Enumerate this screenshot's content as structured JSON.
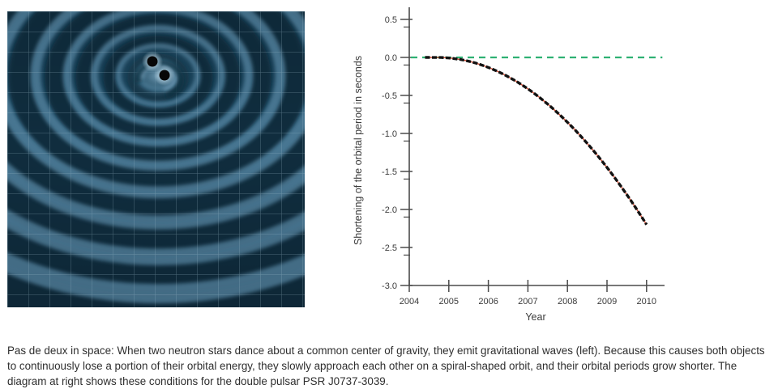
{
  "figure_left": {
    "name": "gravitational-waves-illustration",
    "description": "two neutron stars orbiting a common center of gravity emitting spiral gravitational waves across a spacetime grid",
    "colors": {
      "background": "#1b4659",
      "wave_trough": "#0a2636",
      "wave_crest": "#5a89a6",
      "grid_line": "#9fbdcb",
      "star": "#070707",
      "star_halo": "#e6f3fa"
    }
  },
  "chart_data": {
    "type": "scatter",
    "title": "",
    "xlabel": "Year",
    "ylabel": "Shortening of the orbital period in seconds",
    "xlim": [
      2004,
      2010.45
    ],
    "ylim": [
      -3.0,
      0.6
    ],
    "grid": false,
    "legend": "none",
    "x_ticks": [
      2004,
      2005,
      2006,
      2007,
      2008,
      2009,
      2010
    ],
    "y_ticks": [
      0.5,
      0.0,
      -0.5,
      -1.0,
      -1.5,
      -2.0,
      -2.5,
      -3.0
    ],
    "y_minor_tick_offset": -0.1,
    "axis_color": "#4b4b4b",
    "label_color": "#3b3b3b",
    "reference_line": {
      "y": 0.0,
      "style": "dashed",
      "color": "#2fb173"
    },
    "series": [
      {
        "name": "measured-orbital-period-shift",
        "type": "scatter-dashes",
        "color": "#121212",
        "uses": "points"
      },
      {
        "name": "general-relativity-prediction",
        "type": "line",
        "color": "#cd4a32",
        "uses": "points"
      }
    ],
    "points": [
      [
        2004.4,
        0.0
      ],
      [
        2004.5,
        0.0
      ],
      [
        2004.6,
        -0.001
      ],
      [
        2004.7,
        -0.001
      ],
      [
        2004.8,
        -0.001
      ],
      [
        2004.9,
        -0.003
      ],
      [
        2005.0,
        -0.007
      ],
      [
        2005.1,
        -0.013
      ],
      [
        2005.2,
        -0.02
      ],
      [
        2005.3,
        -0.028
      ],
      [
        2005.4,
        -0.038
      ],
      [
        2005.5,
        -0.05
      ],
      [
        2005.6,
        -0.063
      ],
      [
        2005.7,
        -0.078
      ],
      [
        2005.8,
        -0.095
      ],
      [
        2005.9,
        -0.113
      ],
      [
        2006.0,
        -0.132
      ],
      [
        2006.1,
        -0.153
      ],
      [
        2006.2,
        -0.176
      ],
      [
        2006.3,
        -0.2
      ],
      [
        2006.4,
        -0.226
      ],
      [
        2006.5,
        -0.254
      ],
      [
        2006.6,
        -0.283
      ],
      [
        2006.7,
        -0.313
      ],
      [
        2006.8,
        -0.345
      ],
      [
        2006.9,
        -0.379
      ],
      [
        2007.0,
        -0.414
      ],
      [
        2007.1,
        -0.451
      ],
      [
        2007.2,
        -0.489
      ],
      [
        2007.3,
        -0.529
      ],
      [
        2007.4,
        -0.571
      ],
      [
        2007.5,
        -0.614
      ],
      [
        2007.6,
        -0.658
      ],
      [
        2007.7,
        -0.705
      ],
      [
        2007.8,
        -0.752
      ],
      [
        2007.9,
        -0.802
      ],
      [
        2008.0,
        -0.853
      ],
      [
        2008.1,
        -0.905
      ],
      [
        2008.2,
        -0.959
      ],
      [
        2008.3,
        -1.015
      ],
      [
        2008.4,
        -1.072
      ],
      [
        2008.5,
        -1.131
      ],
      [
        2008.6,
        -1.191
      ],
      [
        2008.7,
        -1.253
      ],
      [
        2008.8,
        -1.316
      ],
      [
        2008.9,
        -1.381
      ],
      [
        2009.0,
        -1.448
      ],
      [
        2009.1,
        -1.516
      ],
      [
        2009.2,
        -1.586
      ],
      [
        2009.3,
        -1.657
      ],
      [
        2009.4,
        -1.73
      ],
      [
        2009.5,
        -1.804
      ],
      [
        2009.6,
        -1.88
      ],
      [
        2009.7,
        -1.958
      ],
      [
        2009.8,
        -2.036
      ],
      [
        2009.9,
        -2.117
      ],
      [
        2010.0,
        -2.199
      ]
    ]
  },
  "caption": {
    "text": "Pas de deux in space: When two neutron stars dance about a common center of gravity, they emit gravitational waves (left). Because this causes both objects to continuously lose a portion of their orbital energy, they slowly approach each other on a spiral-shaped orbit, and their orbital periods grow shorter. The diagram at right shows these conditions for the double pulsar PSR J0737-3039."
  }
}
